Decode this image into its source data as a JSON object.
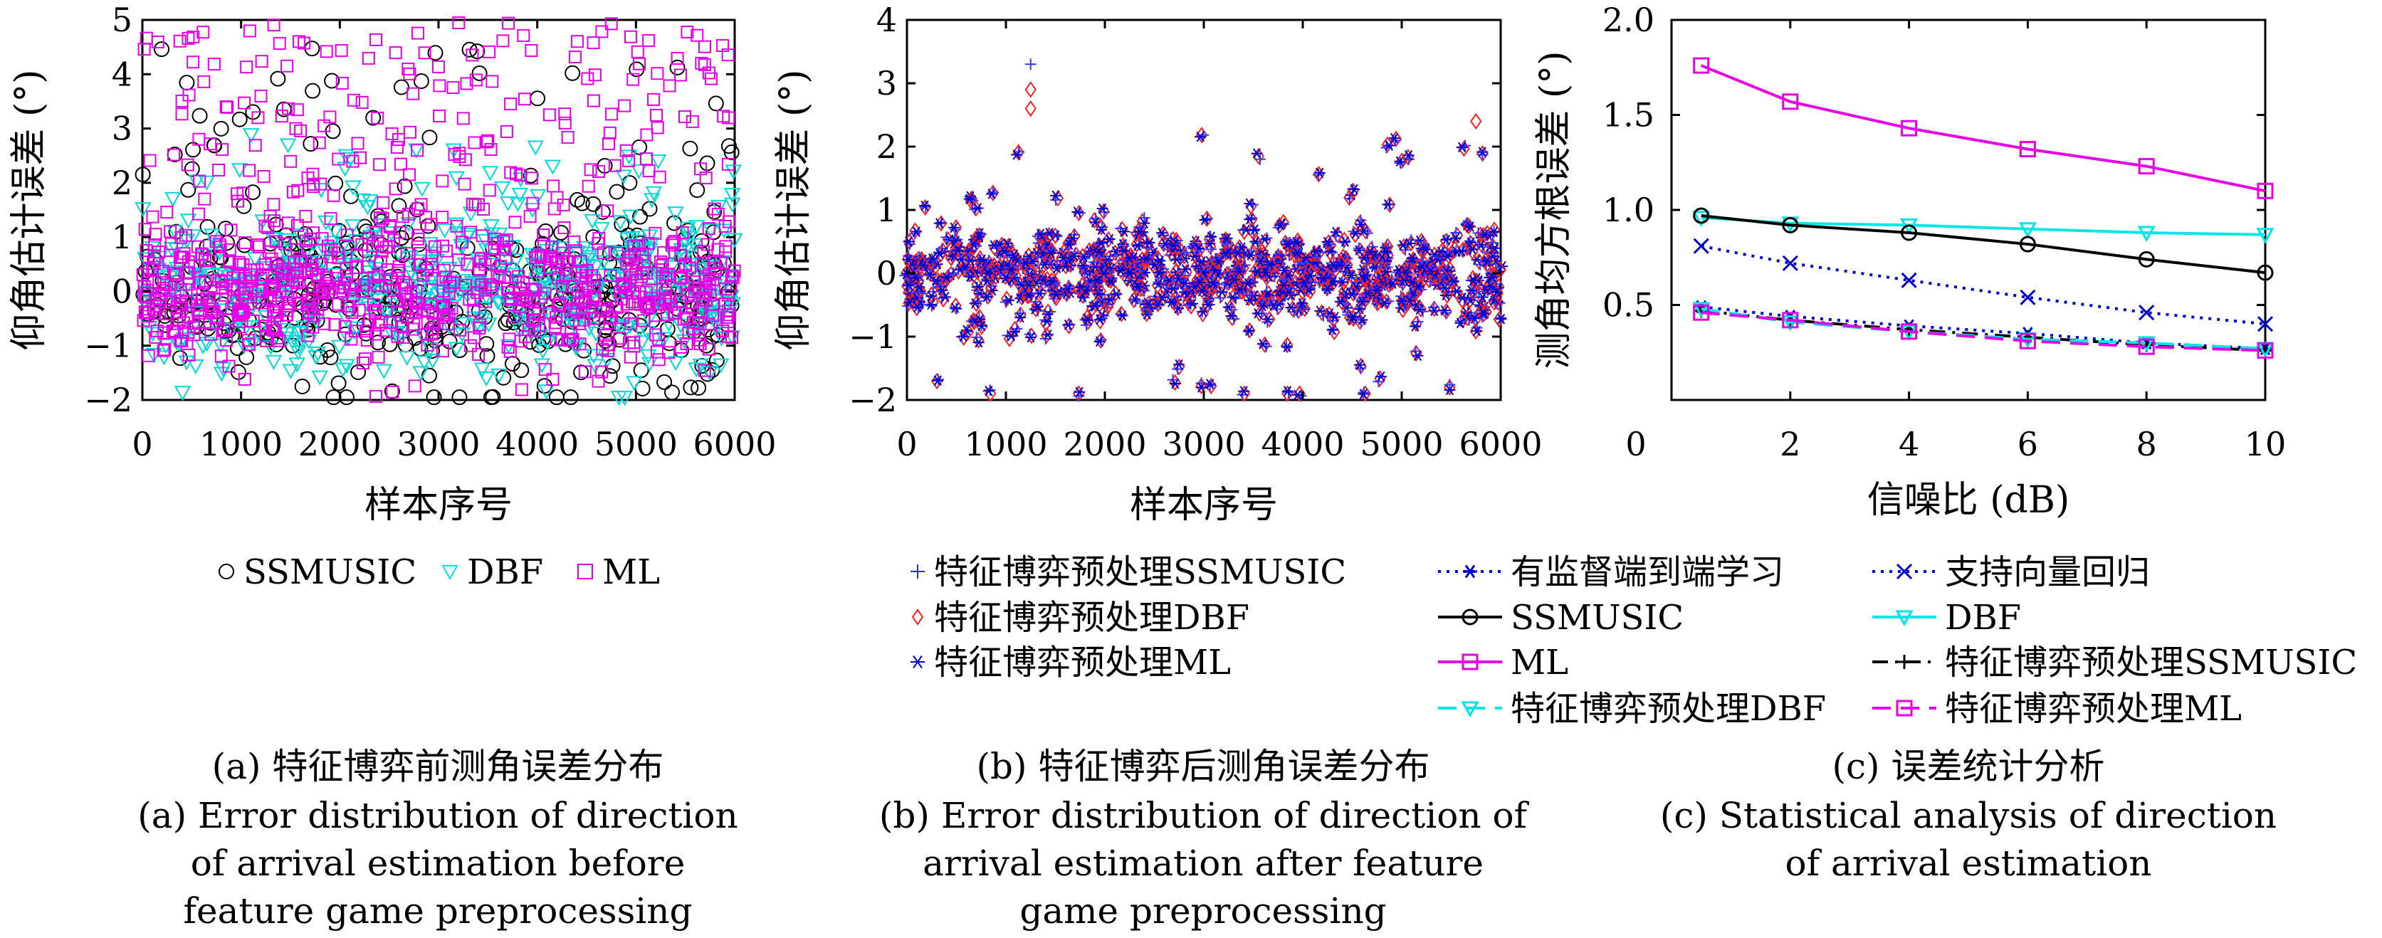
{
  "chart_data": [
    {
      "type": "scatter",
      "xlabel": "样本序号",
      "ylabel": "仰角估计误差 (°)",
      "xlim": [
        0,
        6000
      ],
      "ylim": [
        -2,
        5
      ],
      "xticks": [
        "0",
        "1000",
        "2000",
        "3000",
        "4000",
        "5000",
        "6000"
      ],
      "yticks": [
        "−2",
        "−1",
        "0",
        "1",
        "2",
        "3",
        "4",
        "5"
      ],
      "legend_placement": "below",
      "series": [
        {
          "name": "SSMUSIC",
          "marker": "circle",
          "color": "#000000"
        },
        {
          "name": "DBF",
          "marker": "triangle-down",
          "color": "#00e5e5"
        },
        {
          "name": "ML",
          "marker": "square",
          "color": "#e600e6"
        }
      ],
      "caption": [
        "(a) 特征博弈前测角误差分布",
        "(a) Error distribution of direction",
        "of arrival estimation before",
        "feature game preprocessing"
      ]
    },
    {
      "type": "scatter",
      "xlabel": "样本序号",
      "ylabel": "仰角估计误差 (°)",
      "xlim": [
        0,
        6000
      ],
      "ylim": [
        -2,
        4
      ],
      "xticks": [
        "0",
        "1000",
        "2000",
        "3000",
        "4000",
        "5000",
        "6000"
      ],
      "yticks": [
        "−2",
        "−1",
        "0",
        "1",
        "2",
        "3",
        "4"
      ],
      "legend_placement": "below",
      "series": [
        {
          "name": "特征博弈预处理SSMUSIC",
          "marker": "plus",
          "color": "#2a2aff"
        },
        {
          "name": "特征博弈预处理DBF",
          "marker": "diamond",
          "color": "#ff2020"
        },
        {
          "name": "特征博弈预处理ML",
          "marker": "asterisk",
          "color": "#0000cc"
        }
      ],
      "caption": [
        "(b) 特征博弈后测角误差分布",
        "(b) Error distribution of direction of",
        "arrival estimation after feature",
        "game preprocessing"
      ]
    },
    {
      "type": "line",
      "xlabel": "信噪比 (dB)",
      "ylabel": "测角均方根误差 (°)",
      "xlim": [
        0,
        10
      ],
      "ylim": [
        0,
        2.0
      ],
      "xticks": [
        "0",
        "2",
        "4",
        "6",
        "8",
        "10"
      ],
      "yticks": [
        "0.5",
        "1.0",
        "1.5",
        "2.0"
      ],
      "x": [
        0.5,
        2,
        4,
        6,
        8,
        10
      ],
      "legend_placement": "below",
      "series": [
        {
          "name": "ML",
          "color": "#e600e6",
          "dash": "solid",
          "marker": "square",
          "values": [
            1.76,
            1.57,
            1.43,
            1.32,
            1.23,
            1.1
          ]
        },
        {
          "name": "DBF",
          "color": "#00e5e5",
          "dash": "solid",
          "marker": "triangle-down",
          "values": [
            0.96,
            0.93,
            0.92,
            0.9,
            0.88,
            0.87
          ]
        },
        {
          "name": "SSMUSIC",
          "color": "#000000",
          "dash": "solid",
          "marker": "circle",
          "values": [
            0.97,
            0.92,
            0.88,
            0.82,
            0.74,
            0.67
          ]
        },
        {
          "name": "支持向量回归",
          "color": "#0000cc",
          "dash": "dotted",
          "marker": "x",
          "values": [
            0.81,
            0.72,
            0.63,
            0.54,
            0.46,
            0.4
          ]
        },
        {
          "name": "有监督端到端学习",
          "color": "#0000cc",
          "dash": "dotted",
          "marker": "asterisk",
          "values": [
            0.49,
            0.44,
            0.39,
            0.35,
            0.3,
            0.27
          ]
        },
        {
          "name": "特征博弈预处理SSMUSIC",
          "color": "#000000",
          "dash": "dashdot",
          "marker": "plus",
          "values": [
            0.47,
            0.42,
            0.37,
            0.33,
            0.29,
            0.26
          ]
        },
        {
          "name": "特征博弈预处理DBF",
          "color": "#00e5e5",
          "dash": "dashed",
          "marker": "triangle-down",
          "values": [
            0.48,
            0.41,
            0.36,
            0.32,
            0.3,
            0.27
          ]
        },
        {
          "name": "特征博弈预处理ML",
          "color": "#e600e6",
          "dash": "dashed",
          "marker": "square",
          "values": [
            0.46,
            0.42,
            0.36,
            0.31,
            0.28,
            0.26
          ]
        }
      ],
      "legend_order": [
        "有监督端到端学习",
        "支持向量回归",
        "SSMUSIC",
        "DBF",
        "ML",
        "特征博弈预处理SSMUSIC",
        "特征博弈预处理DBF",
        "特征博弈预处理ML"
      ],
      "caption": [
        "(c) 误差统计分析",
        "(c) Statistical analysis of direction",
        "of arrival estimation"
      ]
    }
  ]
}
